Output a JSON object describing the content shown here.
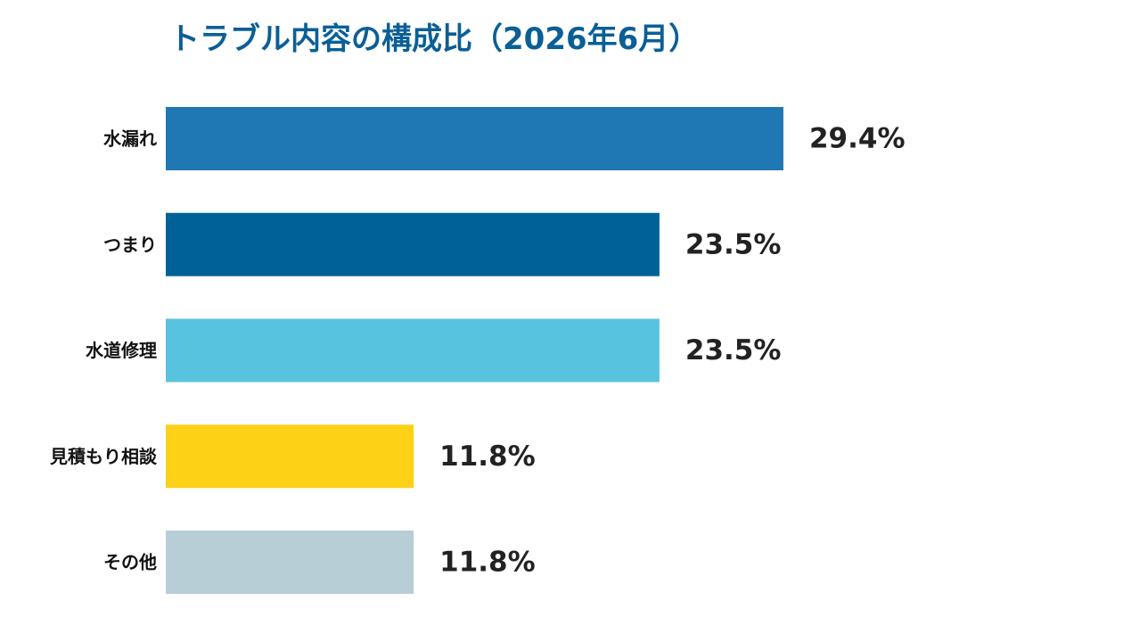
{
  "chart_data": {
    "type": "bar",
    "orientation": "horizontal",
    "title": "トラブル内容の構成比（2026年6月）",
    "categories": [
      "水漏れ",
      "つまり",
      "水道修理",
      "見積もり相談",
      "その他"
    ],
    "values": [
      29.4,
      23.5,
      23.5,
      11.8,
      11.8
    ],
    "value_labels": [
      "29.4%",
      "23.5%",
      "23.5%",
      "11.8%",
      "11.8%"
    ],
    "colors": [
      "#1f77b4",
      "#006198",
      "#58c3df",
      "#fcd116",
      "#b8ced7"
    ],
    "title_color": "#0a5f96",
    "xlabel": "",
    "ylabel": "",
    "grid": false,
    "legend": "none"
  }
}
